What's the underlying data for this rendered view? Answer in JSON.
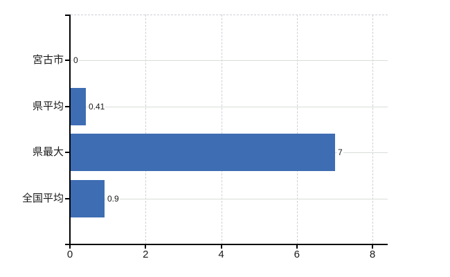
{
  "chart_data": {
    "type": "bar",
    "orientation": "horizontal",
    "title": "",
    "xlabel": "",
    "ylabel": "",
    "categories": [
      "宮古市",
      "県平均",
      "県最大",
      "全国平均"
    ],
    "values": [
      0,
      0.41,
      7,
      0.9
    ],
    "value_labels": [
      "0",
      "0.41",
      "7",
      "0.9"
    ],
    "x_ticks": [
      0,
      2,
      4,
      6,
      8
    ],
    "x_tick_labels": [
      "0",
      "2",
      "4",
      "6",
      "8"
    ],
    "xlim": [
      0,
      8.4
    ],
    "grid": {
      "horizontal": "solid",
      "vertical": "dashed",
      "top_border": "dashed"
    },
    "legend": "none",
    "colors": {
      "bar": "#3e6db3",
      "axis": "#000000",
      "grid_horizontal": "#d7ded7",
      "grid_vertical": "#cfcfd6",
      "text": "#1a1a1a",
      "background": "#ffffff"
    }
  }
}
